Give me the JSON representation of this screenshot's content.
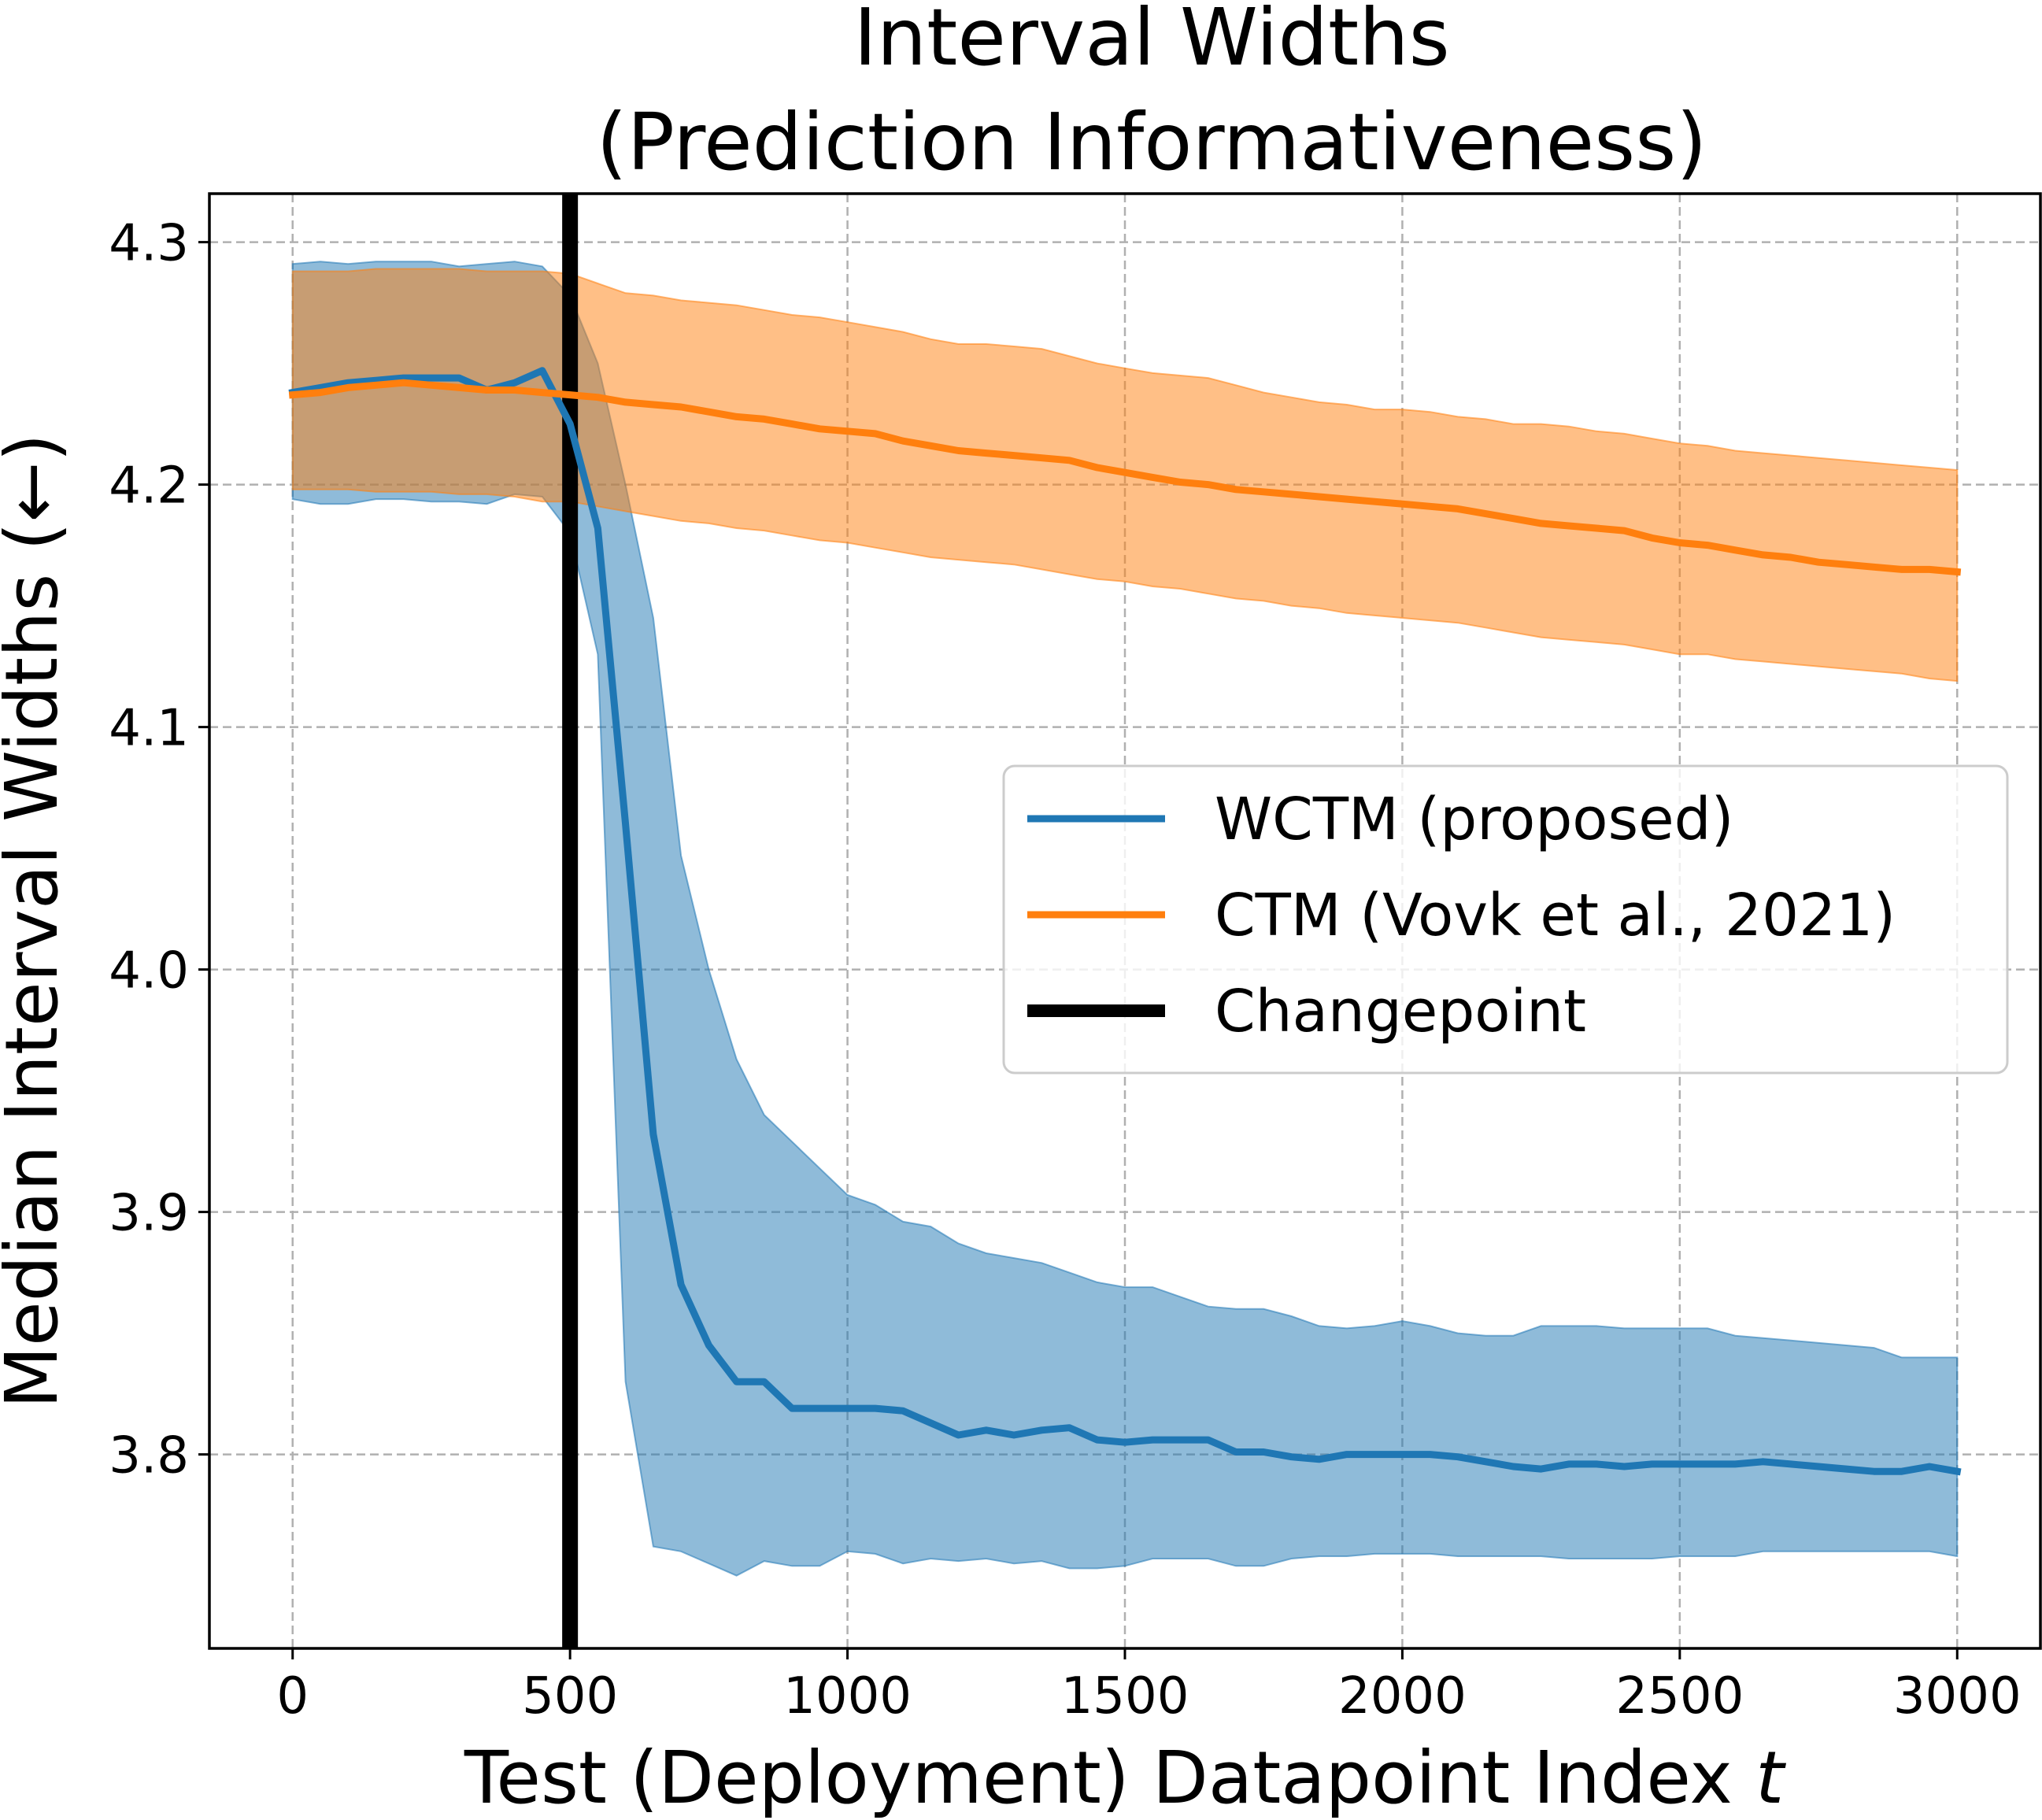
{
  "chart_data": {
    "type": "line",
    "title": [
      "Interval Widths",
      "(Prediction Informativeness)"
    ],
    "xlabel": "Test (Deployment) Datapoint Index",
    "xlabel_var": "t",
    "ylabel": "Median Interval Widths (←)",
    "xlim": [
      -150,
      3150
    ],
    "ylim": [
      3.72,
      4.32
    ],
    "xticks": [
      0,
      500,
      1000,
      1500,
      2000,
      2500,
      3000
    ],
    "xtick_labels": [
      "0",
      "500",
      "1000",
      "1500",
      "2000",
      "2500",
      "3000"
    ],
    "yticks": [
      3.8,
      3.9,
      4.0,
      4.1,
      4.2,
      4.3
    ],
    "ytick_labels": [
      "3.8",
      "3.9",
      "4.0",
      "4.1",
      "4.2",
      "4.3"
    ],
    "grid": true,
    "legend_position": "center-right",
    "changepoint": {
      "x": 500,
      "name": "Changepoint",
      "color": "#000000"
    },
    "series": [
      {
        "name": "WCTM (proposed)",
        "color": "#1f77b4",
        "x": [
          0,
          50,
          100,
          150,
          200,
          250,
          300,
          350,
          400,
          450,
          500,
          550,
          600,
          650,
          700,
          750,
          800,
          850,
          900,
          950,
          1000,
          1050,
          1100,
          1150,
          1200,
          1250,
          1300,
          1350,
          1400,
          1450,
          1500,
          1550,
          1600,
          1650,
          1700,
          1750,
          1800,
          1850,
          1900,
          1950,
          2000,
          2050,
          2100,
          2150,
          2200,
          2250,
          2300,
          2350,
          2400,
          2450,
          2500,
          2550,
          2600,
          2650,
          2700,
          2750,
          2800,
          2850,
          2900,
          2950,
          3000
        ],
        "y": [
          4.238,
          4.24,
          4.242,
          4.243,
          4.244,
          4.244,
          4.244,
          4.239,
          4.242,
          4.247,
          4.225,
          4.182,
          4.06,
          3.932,
          3.87,
          3.845,
          3.83,
          3.83,
          3.819,
          3.819,
          3.819,
          3.819,
          3.818,
          3.813,
          3.808,
          3.81,
          3.808,
          3.81,
          3.811,
          3.806,
          3.805,
          3.806,
          3.806,
          3.806,
          3.801,
          3.801,
          3.799,
          3.798,
          3.8,
          3.8,
          3.8,
          3.8,
          3.799,
          3.797,
          3.795,
          3.794,
          3.796,
          3.796,
          3.795,
          3.796,
          3.796,
          3.796,
          3.796,
          3.797,
          3.796,
          3.795,
          3.794,
          3.793,
          3.793,
          3.795,
          3.793
        ],
        "lower": [
          4.194,
          4.192,
          4.192,
          4.194,
          4.194,
          4.193,
          4.193,
          4.192,
          4.196,
          4.195,
          4.18,
          4.13,
          3.83,
          3.762,
          3.76,
          3.755,
          3.75,
          3.756,
          3.754,
          3.754,
          3.76,
          3.759,
          3.755,
          3.757,
          3.756,
          3.757,
          3.755,
          3.756,
          3.753,
          3.753,
          3.754,
          3.757,
          3.757,
          3.757,
          3.754,
          3.754,
          3.757,
          3.758,
          3.758,
          3.759,
          3.759,
          3.759,
          3.758,
          3.758,
          3.758,
          3.758,
          3.757,
          3.757,
          3.757,
          3.757,
          3.758,
          3.758,
          3.758,
          3.76,
          3.76,
          3.76,
          3.76,
          3.76,
          3.76,
          3.76,
          3.758
        ],
        "upper": [
          4.291,
          4.292,
          4.291,
          4.292,
          4.292,
          4.292,
          4.29,
          4.291,
          4.292,
          4.29,
          4.278,
          4.25,
          4.2,
          4.145,
          4.047,
          4.0,
          3.963,
          3.94,
          3.929,
          3.918,
          3.907,
          3.903,
          3.896,
          3.894,
          3.887,
          3.883,
          3.881,
          3.879,
          3.875,
          3.871,
          3.869,
          3.869,
          3.865,
          3.861,
          3.86,
          3.86,
          3.857,
          3.853,
          3.852,
          3.853,
          3.855,
          3.853,
          3.85,
          3.849,
          3.849,
          3.853,
          3.853,
          3.853,
          3.852,
          3.852,
          3.852,
          3.852,
          3.849,
          3.848,
          3.847,
          3.846,
          3.845,
          3.844,
          3.84,
          3.84,
          3.84
        ]
      },
      {
        "name": "CTM (Vovk et al., 2021)",
        "color": "#ff7f0e",
        "x": [
          0,
          50,
          100,
          150,
          200,
          250,
          300,
          350,
          400,
          450,
          500,
          550,
          600,
          650,
          700,
          750,
          800,
          850,
          900,
          950,
          1000,
          1050,
          1100,
          1150,
          1200,
          1250,
          1300,
          1350,
          1400,
          1450,
          1500,
          1550,
          1600,
          1650,
          1700,
          1750,
          1800,
          1850,
          1900,
          1950,
          2000,
          2050,
          2100,
          2150,
          2200,
          2250,
          2300,
          2350,
          2400,
          2450,
          2500,
          2550,
          2600,
          2650,
          2700,
          2750,
          2800,
          2850,
          2900,
          2950,
          3000
        ],
        "y": [
          4.237,
          4.238,
          4.24,
          4.241,
          4.242,
          4.241,
          4.24,
          4.239,
          4.239,
          4.238,
          4.237,
          4.236,
          4.234,
          4.233,
          4.232,
          4.23,
          4.228,
          4.227,
          4.225,
          4.223,
          4.222,
          4.221,
          4.218,
          4.216,
          4.214,
          4.213,
          4.212,
          4.211,
          4.21,
          4.207,
          4.205,
          4.203,
          4.201,
          4.2,
          4.198,
          4.197,
          4.196,
          4.195,
          4.194,
          4.193,
          4.192,
          4.191,
          4.19,
          4.188,
          4.186,
          4.184,
          4.183,
          4.182,
          4.181,
          4.178,
          4.176,
          4.175,
          4.173,
          4.171,
          4.17,
          4.168,
          4.167,
          4.166,
          4.165,
          4.165,
          4.164
        ],
        "lower": [
          4.198,
          4.198,
          4.198,
          4.197,
          4.197,
          4.197,
          4.196,
          4.196,
          4.195,
          4.193,
          4.193,
          4.191,
          4.189,
          4.187,
          4.185,
          4.184,
          4.182,
          4.181,
          4.179,
          4.177,
          4.176,
          4.174,
          4.172,
          4.17,
          4.169,
          4.168,
          4.167,
          4.165,
          4.163,
          4.161,
          4.16,
          4.158,
          4.157,
          4.155,
          4.153,
          4.152,
          4.15,
          4.149,
          4.147,
          4.146,
          4.145,
          4.144,
          4.143,
          4.141,
          4.139,
          4.137,
          4.136,
          4.135,
          4.134,
          4.132,
          4.13,
          4.13,
          4.128,
          4.127,
          4.126,
          4.125,
          4.124,
          4.123,
          4.122,
          4.12,
          4.119
        ],
        "upper": [
          4.288,
          4.288,
          4.288,
          4.289,
          4.289,
          4.289,
          4.289,
          4.288,
          4.288,
          4.288,
          4.287,
          4.283,
          4.279,
          4.278,
          4.276,
          4.275,
          4.274,
          4.272,
          4.27,
          4.269,
          4.267,
          4.265,
          4.263,
          4.26,
          4.258,
          4.258,
          4.257,
          4.256,
          4.253,
          4.25,
          4.248,
          4.246,
          4.245,
          4.244,
          4.241,
          4.238,
          4.236,
          4.234,
          4.233,
          4.231,
          4.231,
          4.23,
          4.228,
          4.227,
          4.225,
          4.225,
          4.224,
          4.222,
          4.221,
          4.219,
          4.217,
          4.216,
          4.214,
          4.213,
          4.212,
          4.211,
          4.21,
          4.209,
          4.208,
          4.207,
          4.206
        ]
      }
    ]
  }
}
